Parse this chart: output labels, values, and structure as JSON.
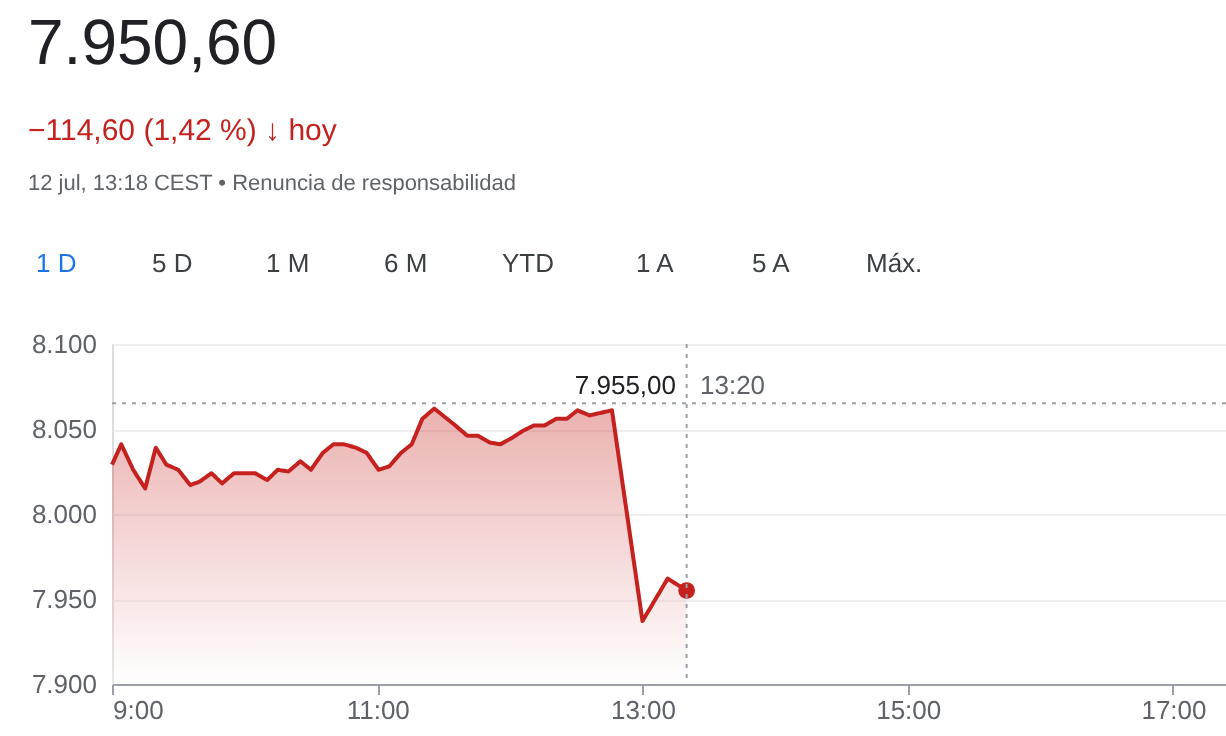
{
  "chart_data": {
    "type": "area",
    "title": "7.950,60",
    "subtitle": "−114,60 (1,42 %) ↓ hoy",
    "annotations": [
      "12 jul, 13:18 CEST • Renuncia de responsabilidad",
      "1 D",
      "5 D",
      "1 M",
      "6 M",
      "YTD",
      "1 A",
      "5 A",
      "Máx.",
      "7.955,00",
      "13:20"
    ],
    "x": [
      9.0,
      9.07,
      9.16,
      9.25,
      9.33,
      9.41,
      9.5,
      9.59,
      9.66,
      9.75,
      9.83,
      9.92,
      10.0,
      10.08,
      10.17,
      10.25,
      10.33,
      10.42,
      10.5,
      10.59,
      10.67,
      10.75,
      10.84,
      10.92,
      11.01,
      11.09,
      11.18,
      11.26,
      11.34,
      11.43,
      11.51,
      11.59,
      11.68,
      11.76,
      11.85,
      11.93,
      12.02,
      12.1,
      12.18,
      12.26,
      12.35,
      12.43,
      12.51,
      12.6,
      12.77,
      13.0,
      13.19,
      13.333
    ],
    "series": [
      {
        "color": "#c5221f",
        "values": [
          8029,
          8041,
          8026,
          8015,
          8039,
          8029,
          8026,
          8017,
          8019,
          8024,
          8018,
          8024,
          8024,
          8024,
          8020,
          8026,
          8025,
          8031,
          8026,
          8036,
          8041,
          8041,
          8039,
          8036,
          8026,
          8028,
          8036,
          8041,
          8056,
          8062,
          8057,
          8052,
          8046,
          8046,
          8042,
          8041,
          8045,
          8049,
          8052,
          8052,
          8056,
          8056,
          8061,
          8058,
          8061,
          7937,
          7962,
          7955
        ]
      },
      {
        "type": "scatter",
        "color": "#c5221f",
        "marker": "circle",
        "x": [
          13.333
        ],
        "values": [
          7955
        ]
      }
    ],
    "xlim": [
      9,
      17.4
    ],
    "xticks": [
      {
        "value": 9,
        "label": "9:00"
      },
      {
        "value": 11,
        "label": "11:00"
      },
      {
        "value": 13,
        "label": "13:00"
      },
      {
        "value": 15,
        "label": "15:00"
      },
      {
        "value": 17,
        "label": "17:00"
      }
    ],
    "ylim": [
      7900,
      8100
    ],
    "yticks": [
      {
        "value": 7900,
        "label": "7.900"
      },
      {
        "value": 7950,
        "label": "7.950"
      },
      {
        "value": 8000,
        "label": "8.000"
      },
      {
        "value": 8050,
        "label": "8.050"
      },
      {
        "value": 8100,
        "label": "8.100"
      }
    ],
    "ref_lines": [
      {
        "axis": "y",
        "value": 8065.2,
        "color": "#9aa0a6",
        "line_style": "dotted"
      },
      {
        "axis": "x",
        "value": 13.333,
        "color": "#9aa0a6",
        "line_style": "dotted"
      }
    ],
    "grid": "y",
    "marker": "none",
    "line_style": "solid"
  }
}
